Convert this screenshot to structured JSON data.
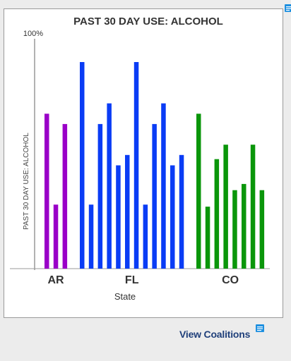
{
  "link": {
    "label": "View Coalitions",
    "icon": "note-icon"
  },
  "corner_icon": "note-icon",
  "colors": {
    "AR": "#9a00c8",
    "FL": "#0a3cf5",
    "CO": "#0a960a",
    "icon_blue": "#1e90e0"
  },
  "chart_data": {
    "type": "bar",
    "title": "PAST 30 DAY USE: ALCOHOL",
    "ylabel": "PAST 30 DAY USE: ALCOHOL",
    "xlabel": "State",
    "y_top_label": "100%",
    "ylim": [
      0,
      100
    ],
    "groups": [
      {
        "label": "AR",
        "values": [
          75,
          31,
          70
        ]
      },
      {
        "label": "FL",
        "values": [
          100,
          31,
          70,
          80,
          50,
          55,
          100,
          31,
          70,
          80,
          50,
          55
        ]
      },
      {
        "label": "CO",
        "values": [
          75,
          30,
          53,
          60,
          38,
          41,
          60,
          38
        ]
      }
    ]
  }
}
